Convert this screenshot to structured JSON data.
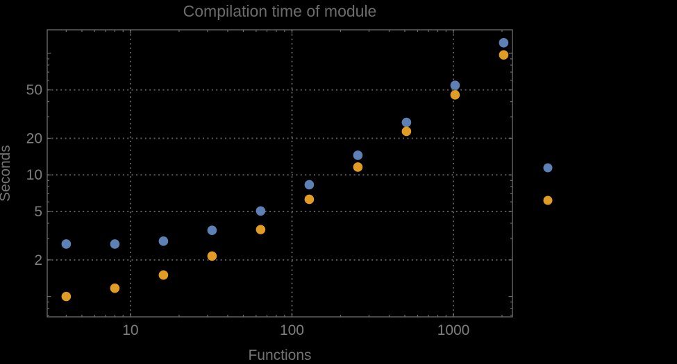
{
  "window": {
    "background_color": "#000000"
  },
  "chart_data": {
    "type": "scatter",
    "title": "Compilation time of module",
    "xlabel": "Functions",
    "ylabel": "Seconds",
    "x_scale": "log",
    "y_scale": "log",
    "xlim": [
      3.05,
      2320
    ],
    "ylim": [
      0.68,
      156
    ],
    "x_ticks": [
      10,
      100,
      1000
    ],
    "y_ticks": [
      2,
      5,
      10,
      20,
      50
    ],
    "grid": "dotted",
    "frame": true,
    "x": [
      4,
      8,
      16,
      32,
      64,
      128,
      256,
      512,
      1024,
      2048
    ],
    "series": [
      {
        "name": "series-blue",
        "color": "#5E81B5",
        "values": [
          2.7,
          2.7,
          2.85,
          3.5,
          5.05,
          8.3,
          14.5,
          27,
          54.5,
          122
        ]
      },
      {
        "name": "series-orange",
        "color": "#E19C24",
        "values": [
          1.0,
          1.17,
          1.5,
          2.15,
          3.55,
          6.3,
          11.6,
          22.8,
          45.5,
          97
        ]
      }
    ],
    "legend": {
      "position": "right-outside",
      "labels_visible": false,
      "entries": [
        {
          "marker": "disk",
          "color": "#5E81B5"
        },
        {
          "marker": "disk",
          "color": "#E19C24"
        }
      ]
    }
  },
  "style": {
    "frame_color": "#6e6e6e",
    "grid_color": "#5d5d5d",
    "tick_label_color": "#7e7e7e",
    "point_radius": 6.8
  }
}
